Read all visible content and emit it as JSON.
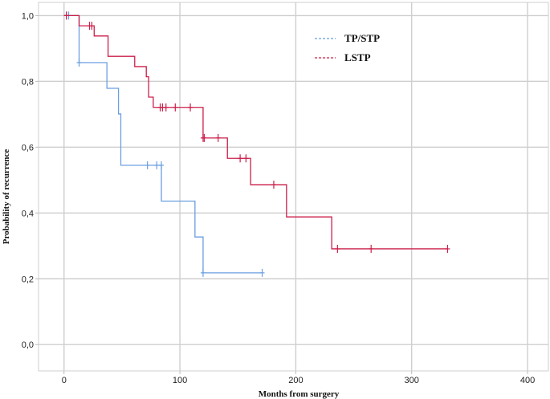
{
  "chart_data": {
    "type": "line",
    "subtype": "kaplan-meier-step",
    "title": "",
    "xlabel": "Months from surgery",
    "ylabel": "Probability of recurrence",
    "xlim": [
      -22,
      418
    ],
    "ylim": [
      -0.08,
      1.04
    ],
    "x_ticks": [
      0,
      100,
      200,
      300,
      400
    ],
    "x_tick_labels": [
      "0",
      "100",
      "200",
      "300",
      "400"
    ],
    "y_ticks": [
      0.0,
      0.2,
      0.4,
      0.6,
      0.8,
      1.0
    ],
    "y_tick_labels": [
      "0,0",
      "0,2",
      "0,4",
      "0,6",
      "0,8",
      "1,0"
    ],
    "grid": true,
    "legend_position": "top-right",
    "series": [
      {
        "name": "TP/STP",
        "color": "#6a9fe0",
        "dash": "dashed-legend",
        "steps": [
          [
            0,
            1.0
          ],
          [
            13,
            0.857
          ],
          [
            37,
            0.779
          ],
          [
            47,
            0.701
          ],
          [
            49,
            0.545
          ],
          [
            84,
            0.436
          ],
          [
            113,
            0.327
          ],
          [
            120,
            0.218
          ],
          [
            171,
            0.218
          ]
        ],
        "censored": [
          [
            2,
            1.0
          ],
          [
            4,
            1.0
          ],
          [
            13,
            0.857
          ],
          [
            72,
            0.545
          ],
          [
            80,
            0.545
          ],
          [
            84,
            0.545
          ],
          [
            120,
            0.218
          ],
          [
            171,
            0.218
          ]
        ]
      },
      {
        "name": "LSTP",
        "color": "#cc1f4a",
        "dash": "dashed-legend",
        "steps": [
          [
            0,
            1.0
          ],
          [
            13,
            0.969
          ],
          [
            26,
            0.938
          ],
          [
            38,
            0.876
          ],
          [
            61,
            0.845
          ],
          [
            71,
            0.814
          ],
          [
            73,
            0.752
          ],
          [
            77,
            0.721
          ],
          [
            120,
            0.628
          ],
          [
            141,
            0.566
          ],
          [
            161,
            0.486
          ],
          [
            192,
            0.388
          ],
          [
            231,
            0.291
          ],
          [
            331,
            0.291
          ]
        ],
        "censored": [
          [
            2,
            1.0
          ],
          [
            22,
            0.969
          ],
          [
            24,
            0.969
          ],
          [
            83,
            0.721
          ],
          [
            85,
            0.721
          ],
          [
            88,
            0.721
          ],
          [
            96,
            0.721
          ],
          [
            109,
            0.721
          ],
          [
            120,
            0.628
          ],
          [
            121,
            0.628
          ],
          [
            133,
            0.628
          ],
          [
            152,
            0.566
          ],
          [
            157,
            0.566
          ],
          [
            181,
            0.486
          ],
          [
            236,
            0.291
          ],
          [
            265,
            0.291
          ],
          [
            331,
            0.291
          ]
        ]
      }
    ]
  }
}
